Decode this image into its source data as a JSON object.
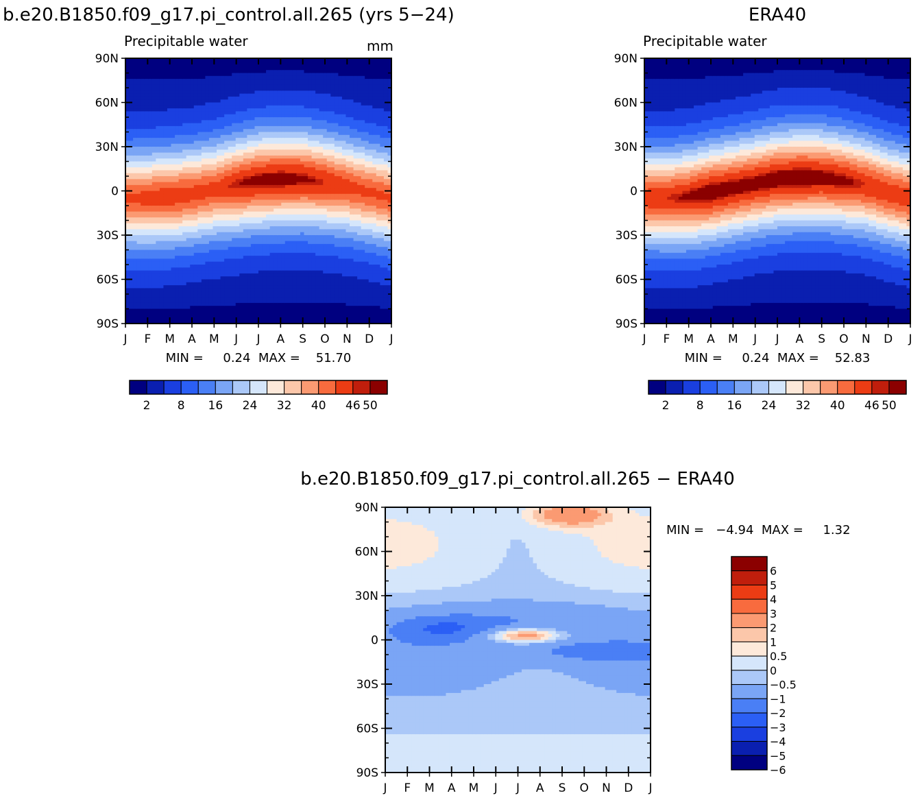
{
  "months": [
    "J",
    "F",
    "M",
    "A",
    "M",
    "J",
    "J",
    "A",
    "S",
    "O",
    "N",
    "D",
    "J"
  ],
  "lat_labels": [
    "90N",
    "60N",
    "30N",
    "0",
    "30S",
    "60S",
    "90S"
  ],
  "palette_main": [
    "#000080",
    "#0a1fb0",
    "#1a3fe0",
    "#2b5ff5",
    "#4a7ff5",
    "#7aa5f5",
    "#abc8f8",
    "#d5e6fb",
    "#fde9da",
    "#fcc7aa",
    "#fb9a72",
    "#f86b3e",
    "#ec3c14",
    "#c01e0c",
    "#8b0000"
  ],
  "palette_diff": [
    "#000080",
    "#0a1fb0",
    "#1a3fe0",
    "#2b5ff5",
    "#4a7ff5",
    "#7aa5f5",
    "#abc8f8",
    "#d5e6fb",
    "#fde9da",
    "#fcc7aa",
    "#fb9a72",
    "#f86b3e",
    "#ec3c14",
    "#c01e0c",
    "#8b0000"
  ],
  "chart_data": [
    {
      "type": "heatmap",
      "title": "b.e20.B1850.f09_g17.pi_control.all.265 (yrs 5−24)",
      "subtitle": "Precipitable water",
      "units": "mm",
      "x": [
        "J",
        "F",
        "M",
        "A",
        "M",
        "J",
        "J",
        "A",
        "S",
        "O",
        "N",
        "D",
        "J"
      ],
      "y": [
        "90N",
        "60N",
        "30N",
        "0",
        "30S",
        "60S",
        "90S"
      ],
      "min_label": "MIN =     0.24  MAX =    51.70",
      "min": 0.24,
      "max": 51.7,
      "colorbar_labels": [
        "2",
        "8",
        "16",
        "24",
        "32",
        "40",
        "46",
        "50"
      ],
      "peak_lat_by_month": [
        -5,
        -5,
        -4,
        -2,
        1,
        4,
        7,
        8,
        8,
        6,
        3,
        -1,
        -5
      ],
      "peak_value_by_month": [
        46,
        47,
        48,
        47,
        47,
        50,
        51.7,
        51.7,
        51,
        49,
        47,
        46,
        46
      ]
    },
    {
      "type": "heatmap",
      "title": "ERA40",
      "subtitle": "Precipitable water",
      "x": [
        "J",
        "F",
        "M",
        "A",
        "M",
        "J",
        "J",
        "A",
        "S",
        "O",
        "N",
        "D",
        "J"
      ],
      "y": [
        "90N",
        "60N",
        "30N",
        "0",
        "30S",
        "60S",
        "90S"
      ],
      "min_label": "MIN =     0.24  MAX =    52.83",
      "min": 0.24,
      "max": 52.83,
      "colorbar_labels": [
        "2",
        "8",
        "16",
        "24",
        "32",
        "40",
        "46",
        "50"
      ],
      "peak_lat_by_month": [
        -5,
        -5,
        -4,
        -1,
        2,
        5,
        8,
        9,
        9,
        7,
        4,
        -1,
        -5
      ],
      "peak_value_by_month": [
        48,
        49,
        51,
        52.8,
        52,
        52,
        52.5,
        52.8,
        52,
        51,
        49,
        48,
        48
      ]
    },
    {
      "type": "heatmap",
      "title": "b.e20.B1850.f09_g17.pi_control.all.265 − ERA40",
      "x": [
        "J",
        "F",
        "M",
        "A",
        "M",
        "J",
        "J",
        "A",
        "S",
        "O",
        "N",
        "D",
        "J"
      ],
      "y": [
        "90N",
        "60N",
        "30N",
        "0",
        "30S",
        "60S",
        "90S"
      ],
      "min_label": "MIN =   −4.94  MAX =     1.32",
      "min": -4.94,
      "max": 1.32,
      "colorbar_labels": [
        "6",
        "5",
        "4",
        "3",
        "2",
        "1",
        "0.5",
        "0",
        "−0.5",
        "−1",
        "−2",
        "−3",
        "−4",
        "−5",
        "−6"
      ]
    }
  ]
}
